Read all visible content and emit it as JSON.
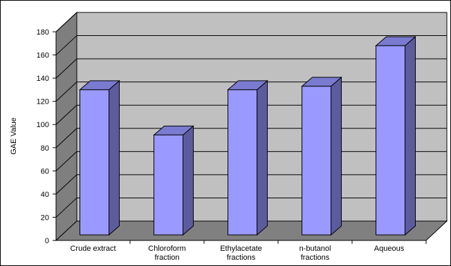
{
  "chart_data": {
    "type": "bar",
    "title": "",
    "xlabel": "",
    "ylabel": "GAE  Value",
    "ylim": [
      0,
      180
    ],
    "yticks": [
      0,
      20,
      40,
      60,
      80,
      100,
      120,
      140,
      160,
      180
    ],
    "categories": [
      [
        "Crude extract"
      ],
      [
        "Chloroform",
        "fraction"
      ],
      [
        "Ethylacetate",
        "fractions"
      ],
      [
        "n-butanol",
        "fractions"
      ],
      [
        "Aqueous"
      ]
    ],
    "series": [
      {
        "values": [
          130,
          91,
          130,
          133,
          168
        ]
      }
    ],
    "grid": true,
    "style_3d": true,
    "colors": {
      "bar_front": "#9999ff",
      "bar_side": "#5b5b9e",
      "bar_top": "#7a7ad0",
      "wall": "#c0c0c0",
      "side_wall": "#7f7f7f",
      "floor": "#808080",
      "grid": "#000000"
    }
  }
}
